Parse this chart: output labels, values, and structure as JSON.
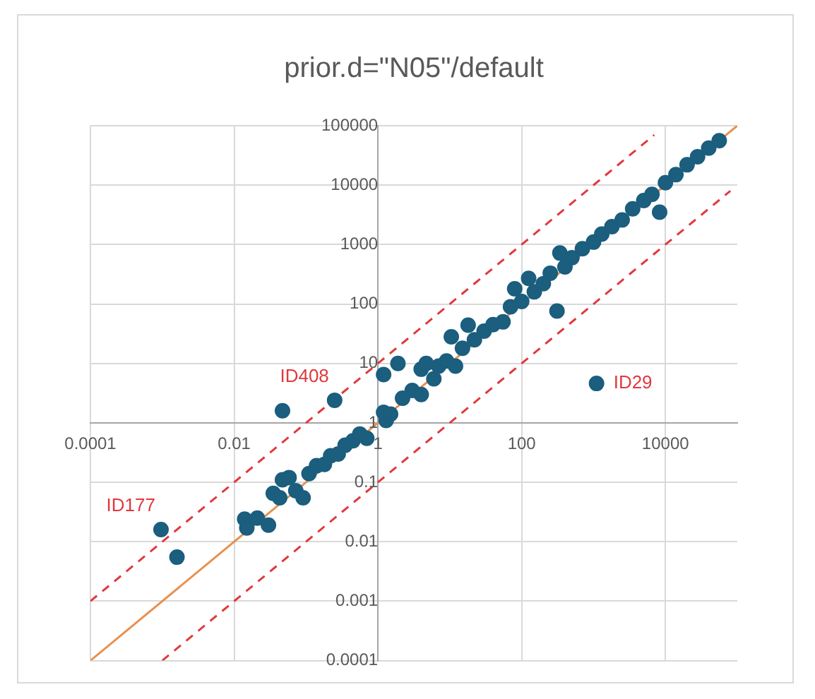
{
  "chart_data": {
    "type": "scatter",
    "title": "prior.d=\"N05\"/default",
    "log": "xy",
    "grid": true,
    "legend": false,
    "xlim": [
      0.0001,
      100000
    ],
    "ylim": [
      0.0001,
      100000
    ],
    "xticks": [
      0.0001,
      0.01,
      1,
      100,
      10000
    ],
    "yticks": [
      0.0001,
      0.001,
      0.01,
      0.1,
      1,
      10,
      100,
      1000,
      10000,
      100000
    ],
    "series": [
      {
        "type": "scatter",
        "marker": "circle",
        "color": "#1b5e7e",
        "x": [
          0.00096,
          0.0016,
          0.014,
          0.015,
          0.021,
          0.03,
          0.035,
          0.043,
          0.047,
          0.047,
          0.058,
          0.072,
          0.091,
          0.11,
          0.14,
          0.18,
          0.22,
          0.25,
          0.28,
          0.35,
          0.45,
          0.56,
          0.7,
          1.3,
          1.2,
          1.2,
          1.5,
          1.9,
          2.2,
          3,
          4,
          4,
          4.7,
          6,
          7,
          9,
          10.5,
          12,
          15,
          18,
          22,
          30,
          40,
          55,
          70,
          80,
          100,
          125,
          150,
          200,
          250,
          310,
          340,
          400,
          500,
          700,
          1000,
          1100,
          1300,
          1800,
          2500,
          3500,
          5000,
          6500,
          8300,
          10000,
          14000,
          20000,
          28000,
          40000,
          56000
        ],
        "values": [
          0.016,
          0.0055,
          0.024,
          0.017,
          0.025,
          0.019,
          0.065,
          0.055,
          0.11,
          1.6,
          0.12,
          0.072,
          0.055,
          0.14,
          0.19,
          0.2,
          0.28,
          2.4,
          0.3,
          0.42,
          0.5,
          0.65,
          0.55,
          1.1,
          6.5,
          1.5,
          1.4,
          10,
          2.6,
          3.5,
          8,
          3,
          10,
          5.5,
          9,
          11,
          28,
          9,
          18,
          44,
          25,
          35,
          45,
          50,
          90,
          180,
          110,
          270,
          160,
          220,
          330,
          76,
          720,
          420,
          600,
          850,
          1100,
          4.6,
          1500,
          2000,
          2600,
          4000,
          5500,
          7000,
          3500,
          11000,
          15000,
          22000,
          30000,
          42000,
          56000
        ]
      },
      {
        "type": "line",
        "marker": "none",
        "line_style": "solid",
        "color": "#e8914f",
        "x": [
          0.0001,
          100000
        ],
        "values": [
          0.0001,
          100000
        ]
      },
      {
        "type": "line",
        "marker": "none",
        "line_style": "dashed",
        "color": "#e0393e",
        "x": [
          0.0001,
          7000
        ],
        "values": [
          0.001,
          70000
        ]
      },
      {
        "type": "line",
        "marker": "none",
        "line_style": "dashed",
        "color": "#e0393e",
        "x": [
          0.001,
          80000
        ],
        "values": [
          0.0001,
          8000
        ]
      }
    ],
    "annotations": [
      {
        "text": "ID408",
        "x": 0.25,
        "y": 2.4
      },
      {
        "text": "ID29",
        "x": 1100,
        "y": 4.6
      },
      {
        "text": "ID177",
        "x": 0.00096,
        "y": 0.016
      }
    ]
  }
}
